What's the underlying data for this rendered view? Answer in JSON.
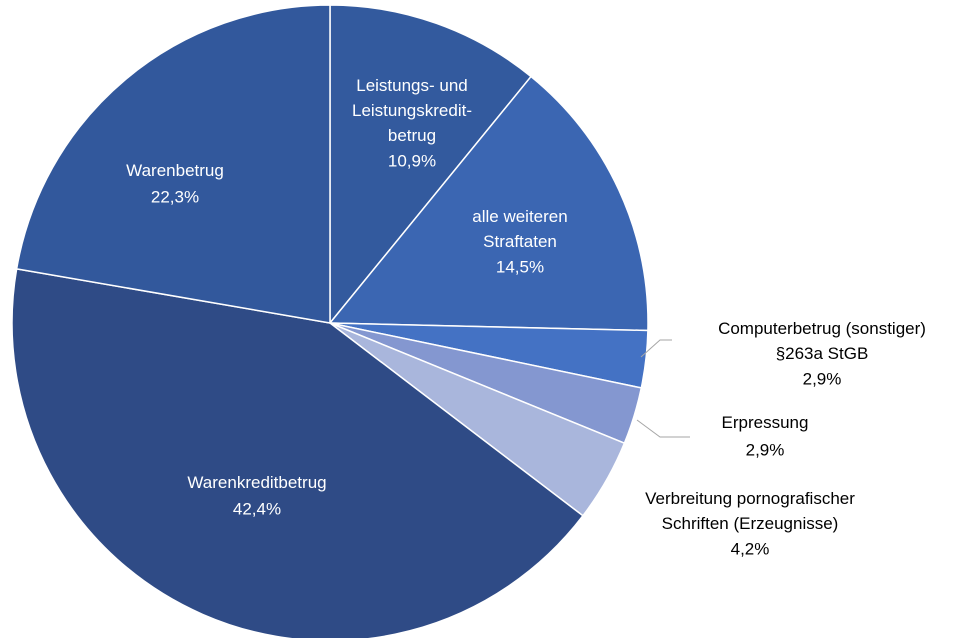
{
  "chart_data": {
    "type": "pie",
    "categories": [
      "Leistungs- und\nLeistungskredit-\nbetrug",
      "alle weiteren\nStraftaten",
      "Computerbetrug (sonstiger)\n§263a StGB",
      "Erpressung",
      "Verbreitung pornografischer\nSchriften (Erzeugnisse)",
      "Warenkreditbetrug",
      "Warenbetrug"
    ],
    "values": [
      10.9,
      14.5,
      2.9,
      2.9,
      4.2,
      42.4,
      22.3
    ],
    "value_labels": [
      "10,9%",
      "14,5%",
      "2,9%",
      "2,9%",
      "4,2%",
      "42,4%",
      "22,3%"
    ],
    "colors": [
      "#335a9e",
      "#3b66b2",
      "#4472c4",
      "#8497d0",
      "#a9b6dc",
      "#2f4b86",
      "#32589c"
    ]
  }
}
